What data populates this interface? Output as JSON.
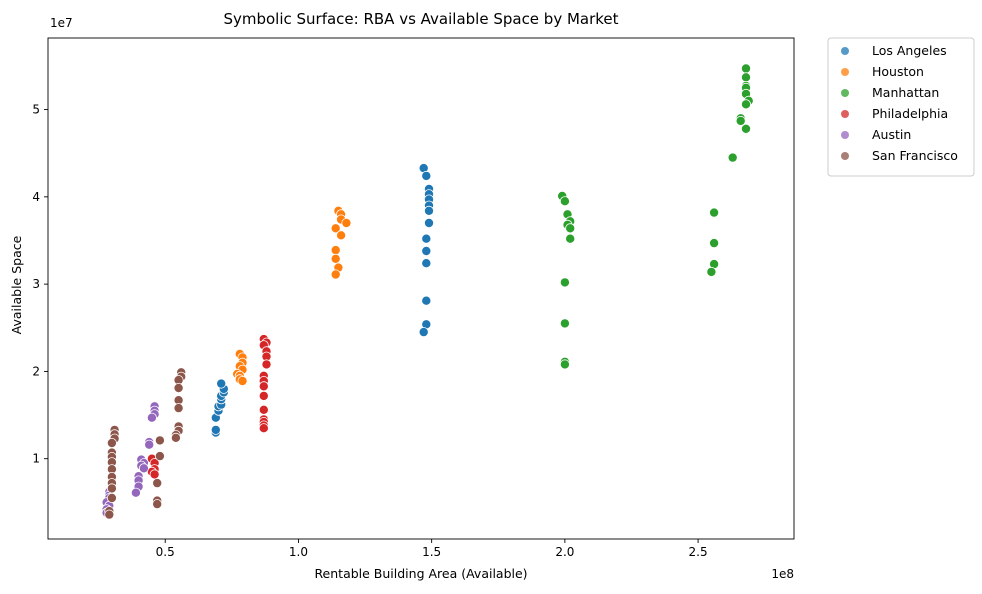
{
  "chart_data": {
    "type": "scatter",
    "title": "Symbolic Surface: RBA vs Available Space by Market",
    "xlabel": "Rentable Building Area (Available)",
    "ylabel": "Available Space",
    "x_offset_label": "1e8",
    "y_offset_label": "1e7",
    "x_scale": 100000000,
    "y_scale": 10000000,
    "xlim": [
      0.06,
      2.86
    ],
    "ylim": [
      0.08,
      5.82
    ],
    "x_ticks": [
      0.5,
      1.0,
      1.5,
      2.0,
      2.5
    ],
    "x_tick_labels": [
      "0.5",
      "1.0",
      "1.5",
      "2.0",
      "2.5"
    ],
    "y_ticks": [
      1,
      2,
      3,
      4,
      5
    ],
    "y_tick_labels": [
      "1",
      "2",
      "3",
      "4",
      "5"
    ],
    "grid": false,
    "legend_position": "outside top-right",
    "series": [
      {
        "name": "Los Angeles",
        "color": "#1f77b4",
        "points": [
          [
            0.69,
            1.3
          ],
          [
            0.69,
            1.33
          ],
          [
            0.69,
            1.47
          ],
          [
            0.7,
            1.55
          ],
          [
            0.7,
            1.6
          ],
          [
            0.71,
            1.62
          ],
          [
            0.71,
            1.68
          ],
          [
            0.71,
            1.72
          ],
          [
            0.72,
            1.76
          ],
          [
            0.72,
            1.8
          ],
          [
            0.71,
            1.86
          ],
          [
            1.47,
            4.33
          ],
          [
            1.48,
            4.24
          ],
          [
            1.49,
            4.09
          ],
          [
            1.49,
            4.03
          ],
          [
            1.49,
            3.97
          ],
          [
            1.49,
            3.9
          ],
          [
            1.49,
            3.84
          ],
          [
            1.49,
            3.7
          ],
          [
            1.48,
            3.52
          ],
          [
            1.48,
            3.38
          ],
          [
            1.48,
            3.24
          ],
          [
            1.48,
            2.81
          ],
          [
            1.48,
            2.54
          ],
          [
            1.47,
            2.45
          ]
        ]
      },
      {
        "name": "Houston",
        "color": "#ff7f0e",
        "points": [
          [
            0.78,
            2.2
          ],
          [
            0.79,
            2.16
          ],
          [
            0.79,
            2.1
          ],
          [
            0.78,
            2.06
          ],
          [
            0.79,
            2.02
          ],
          [
            0.77,
            1.97
          ],
          [
            0.78,
            1.95
          ],
          [
            0.78,
            1.91
          ],
          [
            0.79,
            1.89
          ],
          [
            1.15,
            3.84
          ],
          [
            1.16,
            3.8
          ],
          [
            1.16,
            3.74
          ],
          [
            1.18,
            3.7
          ],
          [
            1.14,
            3.64
          ],
          [
            1.16,
            3.56
          ],
          [
            1.14,
            3.39
          ],
          [
            1.14,
            3.29
          ],
          [
            1.15,
            3.19
          ],
          [
            1.14,
            3.11
          ]
        ]
      },
      {
        "name": "Manhattan",
        "color": "#2ca02c",
        "points": [
          [
            1.99,
            4.01
          ],
          [
            2.0,
            3.95
          ],
          [
            2.01,
            3.8
          ],
          [
            2.02,
            3.72
          ],
          [
            2.01,
            3.68
          ],
          [
            2.02,
            3.64
          ],
          [
            2.02,
            3.52
          ],
          [
            2.0,
            3.02
          ],
          [
            2.0,
            2.55
          ],
          [
            2.0,
            2.11
          ],
          [
            2.0,
            2.08
          ],
          [
            2.56,
            3.82
          ],
          [
            2.56,
            3.47
          ],
          [
            2.56,
            3.23
          ],
          [
            2.55,
            3.14
          ],
          [
            2.63,
            4.45
          ],
          [
            2.68,
            5.47
          ],
          [
            2.68,
            5.37
          ],
          [
            2.68,
            5.27
          ],
          [
            2.68,
            5.25
          ],
          [
            2.68,
            5.18
          ],
          [
            2.66,
            4.9
          ],
          [
            2.66,
            4.87
          ],
          [
            2.69,
            5.1
          ],
          [
            2.68,
            5.06
          ],
          [
            2.68,
            4.78
          ]
        ]
      },
      {
        "name": "Philadelphia",
        "color": "#d62728",
        "points": [
          [
            0.87,
            2.37
          ],
          [
            0.88,
            2.33
          ],
          [
            0.87,
            2.3
          ],
          [
            0.88,
            2.23
          ],
          [
            0.88,
            2.17
          ],
          [
            0.88,
            2.08
          ],
          [
            0.87,
            1.95
          ],
          [
            0.87,
            1.89
          ],
          [
            0.87,
            1.83
          ],
          [
            0.87,
            1.72
          ],
          [
            0.87,
            1.56
          ],
          [
            0.87,
            1.45
          ],
          [
            0.87,
            1.42
          ],
          [
            0.87,
            1.38
          ],
          [
            0.87,
            1.35
          ],
          [
            0.45,
            1.0
          ],
          [
            0.46,
            0.95
          ],
          [
            0.46,
            0.88
          ],
          [
            0.45,
            0.85
          ],
          [
            0.46,
            0.82
          ]
        ]
      },
      {
        "name": "Austin",
        "color": "#9467bd",
        "points": [
          [
            0.29,
            0.62
          ],
          [
            0.29,
            0.58
          ],
          [
            0.29,
            0.55
          ],
          [
            0.28,
            0.5
          ],
          [
            0.29,
            0.46
          ],
          [
            0.28,
            0.42
          ],
          [
            0.28,
            0.38
          ],
          [
            0.41,
            0.99
          ],
          [
            0.42,
            0.95
          ],
          [
            0.41,
            0.92
          ],
          [
            0.42,
            0.89
          ],
          [
            0.4,
            0.8
          ],
          [
            0.4,
            0.75
          ],
          [
            0.4,
            0.68
          ],
          [
            0.39,
            0.61
          ],
          [
            0.46,
            1.6
          ],
          [
            0.46,
            1.55
          ],
          [
            0.46,
            1.51
          ],
          [
            0.45,
            1.47
          ],
          [
            0.44,
            1.19
          ],
          [
            0.44,
            1.16
          ]
        ]
      },
      {
        "name": "San Francisco",
        "color": "#8c564b",
        "points": [
          [
            0.31,
            1.33
          ],
          [
            0.31,
            1.28
          ],
          [
            0.31,
            1.23
          ],
          [
            0.3,
            1.18
          ],
          [
            0.3,
            1.07
          ],
          [
            0.3,
            1.02
          ],
          [
            0.3,
            0.96
          ],
          [
            0.3,
            0.88
          ],
          [
            0.3,
            0.79
          ],
          [
            0.3,
            0.72
          ],
          [
            0.3,
            0.66
          ],
          [
            0.3,
            0.55
          ],
          [
            0.29,
            0.4
          ],
          [
            0.29,
            0.36
          ],
          [
            0.56,
            1.99
          ],
          [
            0.56,
            1.94
          ],
          [
            0.55,
            1.9
          ],
          [
            0.55,
            1.81
          ],
          [
            0.55,
            1.67
          ],
          [
            0.55,
            1.58
          ],
          [
            0.55,
            1.37
          ],
          [
            0.55,
            1.32
          ],
          [
            0.54,
            1.27
          ],
          [
            0.54,
            1.24
          ],
          [
            0.48,
            1.21
          ],
          [
            0.48,
            1.03
          ],
          [
            0.47,
            0.72
          ],
          [
            0.47,
            0.52
          ],
          [
            0.47,
            0.48
          ]
        ]
      }
    ]
  }
}
